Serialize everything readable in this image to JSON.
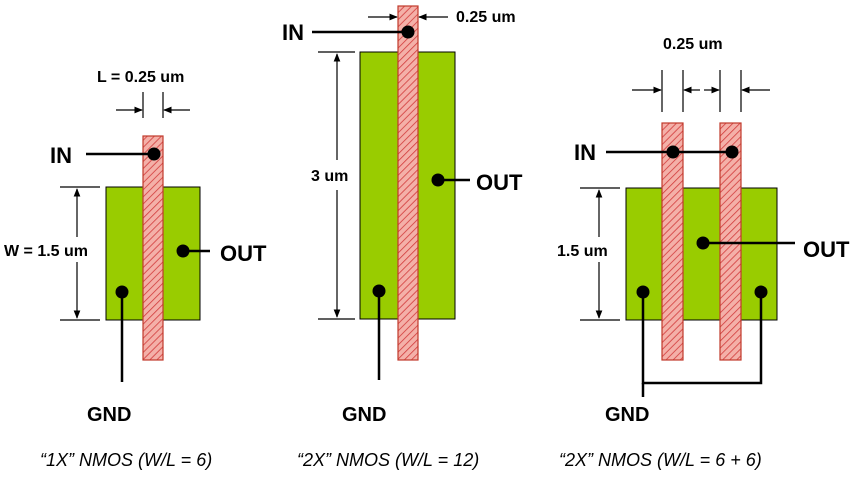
{
  "colors": {
    "active": "#99cc00",
    "poly_fill": "#f4b0a8",
    "poly_hatch": "#d23b3b",
    "poly_edge": "#c0392b",
    "ink": "#000000"
  },
  "diagram_1x": {
    "dim_length": "L = 0.25 um",
    "dim_width": "W = 1.5 um",
    "in": "IN",
    "out": "OUT",
    "gnd": "GND",
    "caption": "“1X” NMOS (W/L = 6)"
  },
  "diagram_2x_single": {
    "dim_length": "0.25 um",
    "dim_width": "3 um",
    "in": "IN",
    "out": "OUT",
    "gnd": "GND",
    "caption": "“2X” NMOS (W/L = 12)"
  },
  "diagram_2x_dual": {
    "dim_length": "0.25 um",
    "dim_width": "1.5 um",
    "in": "IN",
    "out": "OUT",
    "gnd": "GND",
    "caption": "“2X” NMOS (W/L = 6 + 6)"
  }
}
